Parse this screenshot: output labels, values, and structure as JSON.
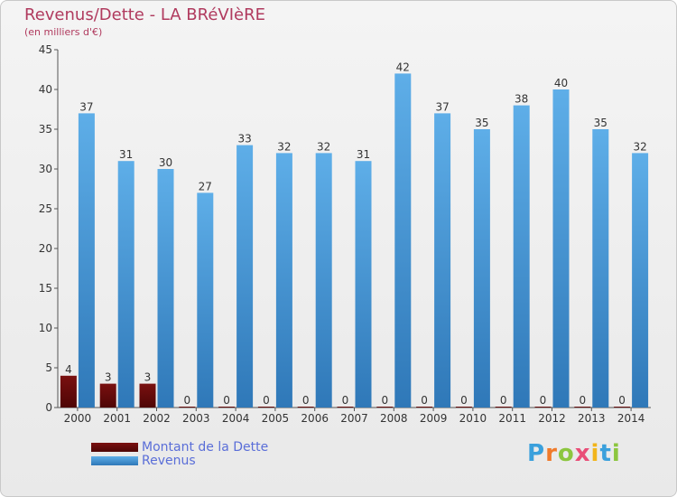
{
  "chart_data": {
    "type": "bar",
    "title": "Revenus/Dette - LA BRéVIèRE",
    "subtitle": "(en milliers d'€)",
    "categories": [
      "2000",
      "2001",
      "2002",
      "2003",
      "2004",
      "2005",
      "2006",
      "2007",
      "2008",
      "2009",
      "2010",
      "2011",
      "2012",
      "2013",
      "2014"
    ],
    "series": [
      {
        "name": "Montant de la Dette",
        "color": "#6b0c0c",
        "values": [
          4,
          3,
          3,
          0,
          0,
          0,
          0,
          0,
          0,
          0,
          0,
          0,
          0,
          0,
          0
        ]
      },
      {
        "name": "Revenus",
        "color": "#3d8fd6",
        "values": [
          37,
          31,
          30,
          27,
          33,
          32,
          32,
          31,
          42,
          37,
          35,
          38,
          40,
          35,
          32
        ]
      }
    ],
    "ylim": [
      0,
      45
    ],
    "yticks": [
      0,
      5,
      10,
      15,
      20,
      25,
      30,
      35,
      40,
      45
    ],
    "grid": false,
    "legend_position": "bottom-left"
  },
  "logo": {
    "letters": [
      "P",
      "r",
      "o",
      "x",
      "i",
      "t",
      "i"
    ],
    "colors": [
      "#3aa0dc",
      "#f07a2a",
      "#8cc63f",
      "#e94e77",
      "#f2b51b",
      "#3aa0dc",
      "#8cc63f"
    ]
  }
}
